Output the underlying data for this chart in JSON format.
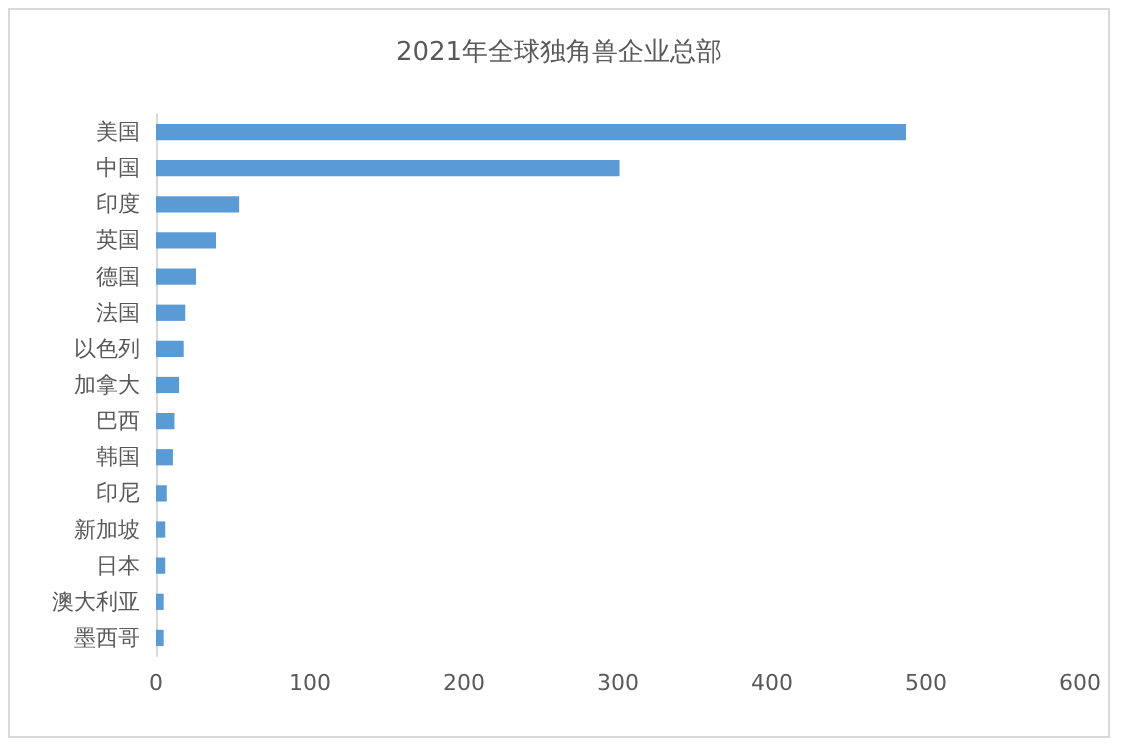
{
  "chart_data": {
    "type": "bar",
    "orientation": "horizontal",
    "title": "2021年全球独角兽企业总部",
    "categories": [
      "美国",
      "中国",
      "印度",
      "英国",
      "德国",
      "法国",
      "以色列",
      "加拿大",
      "巴西",
      "韩国",
      "印尼",
      "新加坡",
      "日本",
      "澳大利亚",
      "墨西哥"
    ],
    "values": [
      487,
      301,
      54,
      39,
      26,
      19,
      18,
      15,
      12,
      11,
      7,
      6,
      6,
      5,
      5
    ],
    "color": "#5b9bd5",
    "xlim": [
      0,
      600
    ],
    "xticks": [
      0,
      100,
      200,
      300,
      400,
      500,
      600
    ],
    "grid": false
  }
}
